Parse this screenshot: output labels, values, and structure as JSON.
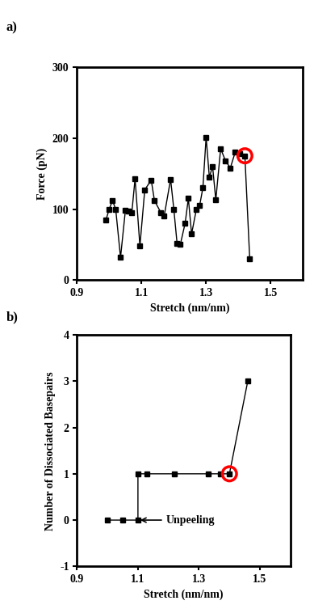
{
  "chart_data": [
    {
      "type": "line",
      "panel_label": "a)",
      "x_label": "Stretch (nm/nm)",
      "y_label": "Force (pN)",
      "xlim": [
        0.9,
        1.6
      ],
      "xticks": [
        0.9,
        1.1,
        1.3,
        1.5
      ],
      "ylim": [
        0,
        300
      ],
      "yticks": [
        0,
        100,
        200,
        300
      ],
      "series": [
        {
          "type": "line",
          "color": "#000000",
          "marker": "s",
          "x": [
            0.99,
            1.0,
            1.01,
            1.02,
            1.035,
            1.05,
            1.06,
            1.07,
            1.08,
            1.095,
            1.11,
            1.13,
            1.14,
            1.16,
            1.17,
            1.19,
            1.2,
            1.21,
            1.22,
            1.235,
            1.245,
            1.255,
            1.27,
            1.28,
            1.29,
            1.3,
            1.31,
            1.32,
            1.33,
            1.345,
            1.36,
            1.375,
            1.39,
            1.405,
            1.42,
            1.435
          ],
          "values": [
            85,
            100,
            112,
            100,
            32,
            98,
            97,
            95,
            143,
            48,
            127,
            141,
            112,
            95,
            90,
            142,
            100,
            52,
            50,
            80,
            115,
            65,
            100,
            105,
            130,
            201,
            145,
            160,
            113,
            185,
            168,
            158,
            180,
            178,
            175,
            30
          ]
        },
        {
          "type": "scatter",
          "color": "#ff0000",
          "marker": "o",
          "x": [
            1.42
          ],
          "values": [
            175
          ]
        }
      ]
    },
    {
      "type": "line",
      "panel_label": "b)",
      "x_label": "Stretch (nm/nm)",
      "y_label": "Number of Dissociated Basepairs",
      "xlim": [
        0.9,
        1.6
      ],
      "xticks": [
        0.9,
        1.1,
        1.3,
        1.5
      ],
      "ylim": [
        -1,
        4
      ],
      "yticks": [
        -1,
        0,
        1,
        2,
        3,
        4
      ],
      "series": [
        {
          "type": "line",
          "color": "#000000",
          "marker": "s",
          "x": [
            1.0,
            1.05,
            1.1,
            1.1,
            1.13,
            1.22,
            1.33,
            1.37,
            1.4,
            1.46
          ],
          "values": [
            0,
            0,
            0,
            1,
            1,
            1,
            1,
            1,
            1,
            3
          ]
        },
        {
          "type": "scatter",
          "color": "#ff0000",
          "marker": "o",
          "x": [
            1.4
          ],
          "values": [
            1
          ]
        }
      ],
      "annotations": [
        {
          "text": "Unpeeling",
          "x": 1.1,
          "y": 0
        }
      ]
    }
  ]
}
